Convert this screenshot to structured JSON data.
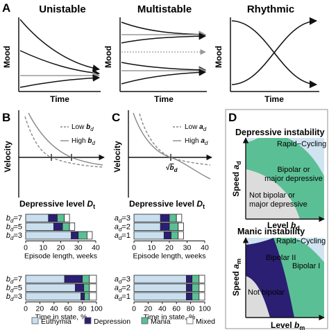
{
  "panels": {
    "A": {
      "letter": "A",
      "subpanels": [
        {
          "title": "Unistable",
          "ylabel": "Mood",
          "xlabel": "Time"
        },
        {
          "title": "Multistable",
          "ylabel": "Mood",
          "xlabel": "Time"
        },
        {
          "title": "Rhythmic",
          "ylabel": "Mood",
          "xlabel": "Time"
        }
      ]
    },
    "B": {
      "letter": "B",
      "ylabel": "Velocity",
      "xlabel_main": "Depressive level ",
      "xlabel_var": "D",
      "xlabel_sub": "t",
      "legend": [
        {
          "prefix": "Low ",
          "var": "b",
          "sub": "d",
          "style": "dashed"
        },
        {
          "prefix": "High ",
          "var": "b",
          "sub": "d",
          "style": "solid"
        }
      ]
    },
    "C": {
      "letter": "C",
      "ylabel": "Velocity",
      "xlabel_main": "Depressive level ",
      "xlabel_var": "D",
      "xlabel_sub": "t",
      "root_label_prefix": "√",
      "root_label_var": "b",
      "root_label_sub": "d",
      "legend": [
        {
          "prefix": "Low ",
          "var": "a",
          "sub": "d",
          "style": "dashed"
        },
        {
          "prefix": "High ",
          "var": "a",
          "sub": "d",
          "style": "solid"
        }
      ]
    },
    "D": {
      "letter": "D",
      "top": {
        "title": "Depressive instability",
        "xlabel_main": "Level ",
        "xlabel_var": "b",
        "xlabel_sub": "d",
        "ylabel_main": "Speed ",
        "ylabel_var": "a",
        "ylabel_sub": "d",
        "regions": [
          "Rapid−Cycling",
          "Bipolar or",
          "major depressive",
          "Not bipolar or",
          "major depressive"
        ]
      },
      "bottom": {
        "title": "Manic instability",
        "xlabel_main": "Level ",
        "xlabel_var": "b",
        "xlabel_sub": "m",
        "ylabel_main": "Speed ",
        "ylabel_var": "a",
        "ylabel_sub": "m",
        "regions": [
          "Rapid−Cycling",
          "Bipolar II",
          "Bipolar I",
          "Not bipolar"
        ]
      }
    }
  },
  "stacked_bars": {
    "B_episode": {
      "xlabel": "Episode length, weeks",
      "ticks": [
        "0",
        "10",
        "20",
        "30",
        "40"
      ],
      "xmax": 40,
      "rows": [
        {
          "var": "b",
          "sub": "d",
          "eq": "=7",
          "segments": [
            13,
            5,
            4,
            3
          ]
        },
        {
          "var": "b",
          "sub": "d",
          "eq": "=5",
          "segments": [
            16,
            5,
            4,
            3
          ]
        },
        {
          "var": "b",
          "sub": "d",
          "eq": "=3",
          "segments": [
            26,
            4,
            5,
            3
          ]
        }
      ]
    },
    "C_episode": {
      "xlabel": "Episode length, weeks",
      "ticks": [
        "0",
        "10",
        "20",
        "30",
        "40"
      ],
      "xmax": 40,
      "rows": [
        {
          "var": "a",
          "sub": "d",
          "eq": "=3",
          "segments": [
            15,
            5,
            4,
            3
          ]
        },
        {
          "var": "a",
          "sub": "d",
          "eq": "=2",
          "segments": [
            15,
            5,
            5,
            3
          ]
        },
        {
          "var": "a",
          "sub": "d",
          "eq": "=1",
          "segments": [
            17,
            4,
            4,
            3
          ]
        }
      ]
    },
    "B_time": {
      "xlabel": "Time in state, %",
      "ticks": [
        "0",
        "20",
        "40",
        "60",
        "80",
        "100"
      ],
      "xmax": 100,
      "rows": [
        {
          "var": "b",
          "sub": "d",
          "eq": "=7",
          "segments": [
            55,
            25,
            10,
            10
          ]
        },
        {
          "var": "b",
          "sub": "d",
          "eq": "=5",
          "segments": [
            70,
            12,
            8,
            10
          ]
        },
        {
          "var": "b",
          "sub": "d",
          "eq": "=3",
          "segments": [
            78,
            5,
            7,
            10
          ]
        }
      ]
    },
    "C_time": {
      "xlabel": "Time in state, %",
      "ticks": [
        "0",
        "20",
        "40",
        "60",
        "80",
        "100"
      ],
      "xmax": 100,
      "rows": [
        {
          "var": "a",
          "sub": "d",
          "eq": "=3",
          "segments": [
            74,
            8,
            10,
            8
          ]
        },
        {
          "var": "a",
          "sub": "d",
          "eq": "=2",
          "segments": [
            74,
            8,
            10,
            8
          ]
        },
        {
          "var": "a",
          "sub": "d",
          "eq": "=1",
          "segments": [
            74,
            8,
            10,
            8
          ]
        }
      ]
    }
  },
  "legend": [
    {
      "label": "Euthymia",
      "color": "#c9dff0"
    },
    {
      "label": "Depression",
      "color": "#2b1f73"
    },
    {
      "label": "Mania",
      "color": "#5bbf95"
    },
    {
      "label": "Mixed",
      "color": "#ffffff"
    }
  ],
  "colors": {
    "euthymia": "#c9dff0",
    "depression": "#2b1f73",
    "mania": "#5bbf95",
    "mixed": "#ffffff",
    "gray_region": "#dcdcdc",
    "light_blue_region": "#cfe3f1",
    "green_region": "#5bbf95",
    "purple_region": "#2b1f73"
  }
}
